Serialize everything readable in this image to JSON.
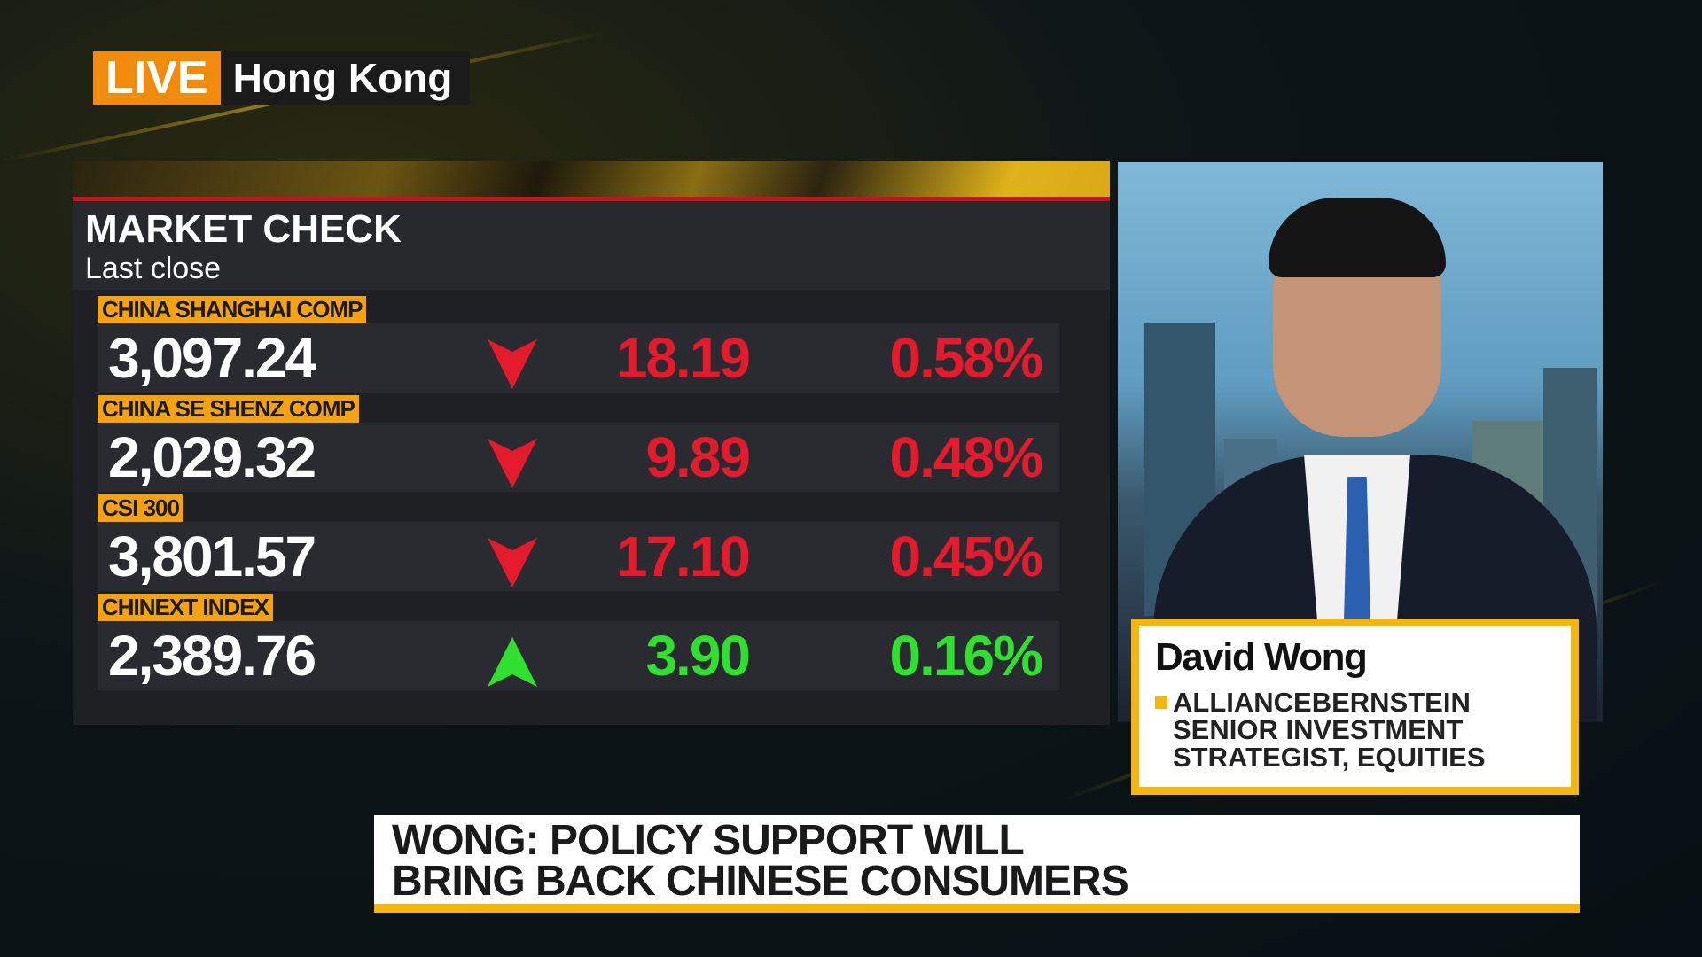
{
  "live": {
    "badge": "LIVE",
    "location": "Hong Kong"
  },
  "market_check": {
    "title": "MARKET CHECK",
    "subtitle": "Last close",
    "rows": [
      {
        "name": "CHINA SHANGHAI COMP",
        "value": "3,097.24",
        "direction": "down",
        "change": "18.19",
        "percent": "0.58%"
      },
      {
        "name": "CHINA SE SHENZ COMP",
        "value": "2,029.32",
        "direction": "down",
        "change": "9.89",
        "percent": "0.48%"
      },
      {
        "name": "CSI 300",
        "value": "3,801.57",
        "direction": "down",
        "change": "17.10",
        "percent": "0.45%"
      },
      {
        "name": "CHINEXT INDEX",
        "value": "2,389.76",
        "direction": "up",
        "change": "3.90",
        "percent": "0.16%"
      }
    ],
    "colors": {
      "down": "#e31b2c",
      "up": "#2fe02f",
      "label": "#f4a20f"
    }
  },
  "guest": {
    "name": "David Wong",
    "title_lines": [
      "ALLIANCEBERNSTEIN",
      "SENIOR INVESTMENT",
      "STRATEGIST, EQUITIES"
    ]
  },
  "headline": {
    "lines": [
      "WONG: POLICY SUPPORT WILL",
      "BRING BACK CHINESE CONSUMERS"
    ]
  }
}
